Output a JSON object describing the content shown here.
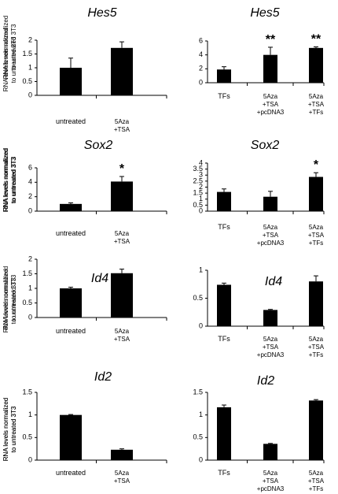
{
  "chart_data": [
    {
      "type": "bar",
      "title": "Hes5",
      "ylabel": "RNA levels normalized to untreated 3T3",
      "ylim": [
        0,
        2
      ],
      "ticks": [
        "0",
        "0.5",
        "1",
        "1.5",
        "2"
      ],
      "categories": [
        [
          "untreated"
        ],
        [
          "5Aza",
          "+TSA"
        ]
      ],
      "values": [
        1.0,
        1.72
      ],
      "errors": [
        0.35,
        0.22
      ],
      "significance": [
        "",
        ""
      ]
    },
    {
      "type": "bar",
      "title": "Hes5",
      "ylabel": "RNA levels normalized to untreated 3T3",
      "ylim": [
        0,
        6
      ],
      "ticks": [
        "0",
        "2",
        "4",
        "6"
      ],
      "categories": [
        [
          "TFs"
        ],
        [
          "5Aza",
          "+TSA",
          "+pcDNA3"
        ],
        [
          "5Aza",
          "+TSA",
          "+TFs"
        ]
      ],
      "values": [
        1.9,
        4.0,
        5.0
      ],
      "errors": [
        0.4,
        1.1,
        0.15
      ],
      "significance": [
        "",
        "**",
        "**"
      ]
    },
    {
      "type": "bar",
      "title": "Sox2",
      "ylabel": "RNA levels normalized to untreated 3T3",
      "ylim": [
        0,
        6
      ],
      "ticks": [
        "0",
        "2",
        "4",
        "6"
      ],
      "categories": [
        [
          "untreated"
        ],
        [
          "5Aza",
          "+TSA"
        ]
      ],
      "values": [
        1.0,
        4.1
      ],
      "errors": [
        0.15,
        0.7
      ],
      "significance": [
        "",
        "*"
      ]
    },
    {
      "type": "bar",
      "title": "Sox2",
      "ylabel": "RNA levels normalized to untreated 3T3",
      "ylim": [
        0,
        4
      ],
      "ticks": [
        "0",
        "0.5",
        "1",
        "1.5",
        "2",
        "2.5",
        "3",
        "3.5",
        "4"
      ],
      "categories": [
        [
          "TFs"
        ],
        [
          "5Aza",
          "+TSA",
          "+pcDNA3"
        ],
        [
          "5Aza",
          "+TSA",
          "+TFs"
        ]
      ],
      "values": [
        1.6,
        1.2,
        2.85
      ],
      "errors": [
        0.25,
        0.45,
        0.35
      ],
      "significance": [
        "",
        "",
        "*"
      ]
    },
    {
      "type": "bar",
      "title": "Id4",
      "ylabel": "RNA levels normalized to untreated 3T3",
      "ylim": [
        0,
        2
      ],
      "ticks": [
        "0",
        "0.5",
        "1",
        "1.5",
        "2"
      ],
      "categories": [
        [
          "untreated"
        ],
        [
          "5Aza",
          "+TSA"
        ]
      ],
      "values": [
        1.0,
        1.52
      ],
      "errors": [
        0.04,
        0.14
      ],
      "significance": [
        "",
        ""
      ]
    },
    {
      "type": "bar",
      "title": "Id4",
      "ylabel": "RNA levels normalized to untreated 3T3",
      "ylim": [
        0,
        1
      ],
      "ticks": [
        "0",
        "0.5",
        "1"
      ],
      "categories": [
        [
          "TFs"
        ],
        [
          "5Aza",
          "+TSA",
          "+pcDNA3"
        ],
        [
          "5Aza",
          "+TSA",
          "+TFs"
        ]
      ],
      "values": [
        0.74,
        0.29,
        0.8
      ],
      "errors": [
        0.03,
        0.01,
        0.1
      ],
      "significance": [
        "",
        "",
        ""
      ]
    },
    {
      "type": "bar",
      "title": "Id2",
      "ylabel": "RNA levels normalized to untreated 3T3",
      "ylim": [
        0,
        1.5
      ],
      "ticks": [
        "0",
        "0.5",
        "1",
        "1.5"
      ],
      "categories": [
        [
          "untreated"
        ],
        [
          "5Aza",
          "+TSA"
        ]
      ],
      "values": [
        1.0,
        0.23
      ],
      "errors": [
        0.01,
        0.02
      ],
      "significance": [
        "",
        ""
      ]
    },
    {
      "type": "bar",
      "title": "Id2",
      "ylabel": "RNA levels normalized to untreated 3T3",
      "ylim": [
        0,
        1.5
      ],
      "ticks": [
        "0",
        "0.5",
        "1",
        "1.5"
      ],
      "categories": [
        [
          "TFs"
        ],
        [
          "5Aza",
          "+TSA",
          "+pcDNA3"
        ],
        [
          "5Aza",
          "+TSA",
          "+TFs"
        ]
      ],
      "values": [
        1.17,
        0.36,
        1.32
      ],
      "errors": [
        0.05,
        0.01,
        0.02
      ],
      "significance": [
        "",
        "",
        ""
      ]
    }
  ]
}
